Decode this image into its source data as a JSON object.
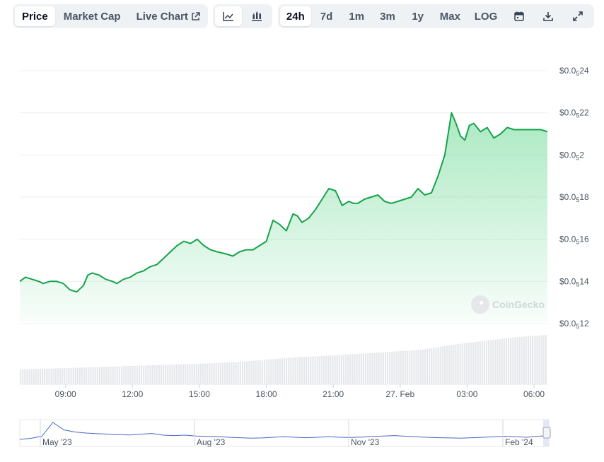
{
  "toolbar": {
    "metric_tabs": [
      {
        "label": "Price",
        "active": true
      },
      {
        "label": "Market Cap",
        "active": false
      },
      {
        "label": "Live Chart",
        "active": false,
        "icon": "external-link-icon"
      }
    ],
    "chart_type_buttons": [
      {
        "icon": "line-chart-icon",
        "active": true
      },
      {
        "icon": "candlestick-chart-icon",
        "active": false
      }
    ],
    "range_buttons": [
      {
        "label": "24h",
        "active": true
      },
      {
        "label": "7d",
        "active": false
      },
      {
        "label": "1m",
        "active": false
      },
      {
        "label": "3m",
        "active": false
      },
      {
        "label": "1y",
        "active": false
      },
      {
        "label": "Max",
        "active": false
      },
      {
        "label": "LOG",
        "active": false
      }
    ],
    "tool_icons": [
      "calendar-icon",
      "download-icon",
      "expand-icon"
    ]
  },
  "watermark": "CoinGecko",
  "colors": {
    "line": "#16a34a",
    "fill": "#22c55e",
    "volume": "#e5e7eb",
    "grid": "#eef0f3",
    "navigator_line": "#4a67c4"
  },
  "chart_data": {
    "type": "area",
    "ylim": [
      1.21e-06,
      2.41e-06
    ],
    "y_ticks": [
      {
        "prefix": "$0.0",
        "sub": "5",
        "suffix": "24",
        "value": 2.4e-06
      },
      {
        "prefix": "$0.0",
        "sub": "5",
        "suffix": "22",
        "value": 2.2e-06
      },
      {
        "prefix": "$0.0",
        "sub": "5",
        "suffix": "2",
        "value": 2e-06
      },
      {
        "prefix": "$0.0",
        "sub": "5",
        "suffix": "18",
        "value": 1.8e-06
      },
      {
        "prefix": "$0.0",
        "sub": "5",
        "suffix": "16",
        "value": 1.6e-06
      },
      {
        "prefix": "$0.0",
        "sub": "5",
        "suffix": "14",
        "value": 1.4e-06
      },
      {
        "prefix": "$0.0",
        "sub": "5",
        "suffix": "12",
        "value": 1.2e-06
      }
    ],
    "x_ticks": [
      "09:00",
      "12:00",
      "15:00",
      "18:00",
      "21:00",
      "27. Feb",
      "03:00",
      "06:00"
    ],
    "x_tick_hours": [
      9,
      12,
      15,
      18,
      21,
      24,
      27,
      30
    ],
    "x_range_hours": [
      6.95,
      30.6
    ],
    "series": [
      {
        "x": [
          6.95,
          7.2,
          7.5,
          7.8,
          8.0,
          8.3,
          8.6,
          8.9,
          9.2,
          9.5,
          9.8,
          10.0,
          10.2,
          10.5,
          10.8,
          11.1,
          11.3,
          11.6,
          11.9,
          12.2,
          12.5,
          12.8,
          13.1,
          13.4,
          13.7,
          14.0,
          14.3,
          14.6,
          14.9,
          15.2,
          15.5,
          15.8,
          16.2,
          16.5,
          16.8,
          17.1,
          17.4,
          17.7,
          18.0,
          18.3,
          18.6,
          18.9,
          19.2,
          19.4,
          19.6,
          19.9,
          20.2,
          20.5,
          20.8,
          21.1,
          21.4,
          21.7,
          21.9,
          22.1,
          22.4,
          22.7,
          23.0,
          23.3,
          23.6,
          23.9,
          24.2,
          24.5,
          24.8,
          25.1,
          25.4,
          25.7,
          26.0,
          26.3,
          26.5,
          26.7,
          26.9,
          27.1,
          27.3,
          27.6,
          27.9,
          28.2,
          28.5,
          28.8,
          29.1,
          29.4,
          29.7,
          30.0,
          30.3,
          30.6
        ],
        "values": [
          1.4e-06,
          1.42e-06,
          1.41e-06,
          1.4e-06,
          1.39e-06,
          1.4e-06,
          1.4e-06,
          1.39e-06,
          1.36e-06,
          1.35e-06,
          1.38e-06,
          1.43e-06,
          1.44e-06,
          1.43e-06,
          1.41e-06,
          1.4e-06,
          1.39e-06,
          1.41e-06,
          1.42e-06,
          1.44e-06,
          1.45e-06,
          1.47e-06,
          1.48e-06,
          1.51e-06,
          1.54e-06,
          1.57e-06,
          1.59e-06,
          1.58e-06,
          1.6e-06,
          1.57e-06,
          1.55e-06,
          1.54e-06,
          1.53e-06,
          1.52e-06,
          1.54e-06,
          1.55e-06,
          1.55e-06,
          1.57e-06,
          1.59e-06,
          1.69e-06,
          1.67e-06,
          1.64e-06,
          1.72e-06,
          1.71e-06,
          1.68e-06,
          1.7e-06,
          1.74e-06,
          1.79e-06,
          1.84e-06,
          1.83e-06,
          1.76e-06,
          1.78e-06,
          1.77e-06,
          1.77e-06,
          1.79e-06,
          1.8e-06,
          1.81e-06,
          1.78e-06,
          1.77e-06,
          1.78e-06,
          1.79e-06,
          1.8e-06,
          1.84e-06,
          1.81e-06,
          1.82e-06,
          1.9e-06,
          2e-06,
          2.2e-06,
          2.15e-06,
          2.09e-06,
          2.07e-06,
          2.14e-06,
          2.15e-06,
          2.11e-06,
          2.13e-06,
          2.08e-06,
          2.1e-06,
          2.13e-06,
          2.12e-06,
          2.12e-06,
          2.12e-06,
          2.12e-06,
          2.12e-06,
          2.11e-06
        ]
      }
    ],
    "volume": {
      "x_start": 6.95,
      "x_end": 30.6,
      "bars": 240,
      "relative_values": [
        0.3,
        0.32,
        0.34,
        0.36,
        0.38,
        0.4,
        0.42,
        0.45,
        0.5,
        0.55,
        0.58,
        0.62,
        0.66,
        0.7,
        0.8,
        0.88,
        0.95,
        1.0
      ]
    }
  },
  "navigator": {
    "labels": [
      "May '23",
      "Aug '23",
      "Nov '23",
      "Feb '24"
    ],
    "series": [
      0.2,
      0.25,
      0.35,
      1.0,
      0.65,
      0.55,
      0.5,
      0.47,
      0.45,
      0.42,
      0.41,
      0.45,
      0.48,
      0.4,
      0.38,
      0.4,
      0.36,
      0.34,
      0.33,
      0.3,
      0.28,
      0.26,
      0.27,
      0.3,
      0.33,
      0.3,
      0.28,
      0.3,
      0.33,
      0.3,
      0.29,
      0.31,
      0.34,
      0.36,
      0.38,
      0.35,
      0.32,
      0.3,
      0.28,
      0.27,
      0.26,
      0.28,
      0.3,
      0.32,
      0.35,
      0.33,
      0.3,
      0.35,
      0.38
    ]
  }
}
